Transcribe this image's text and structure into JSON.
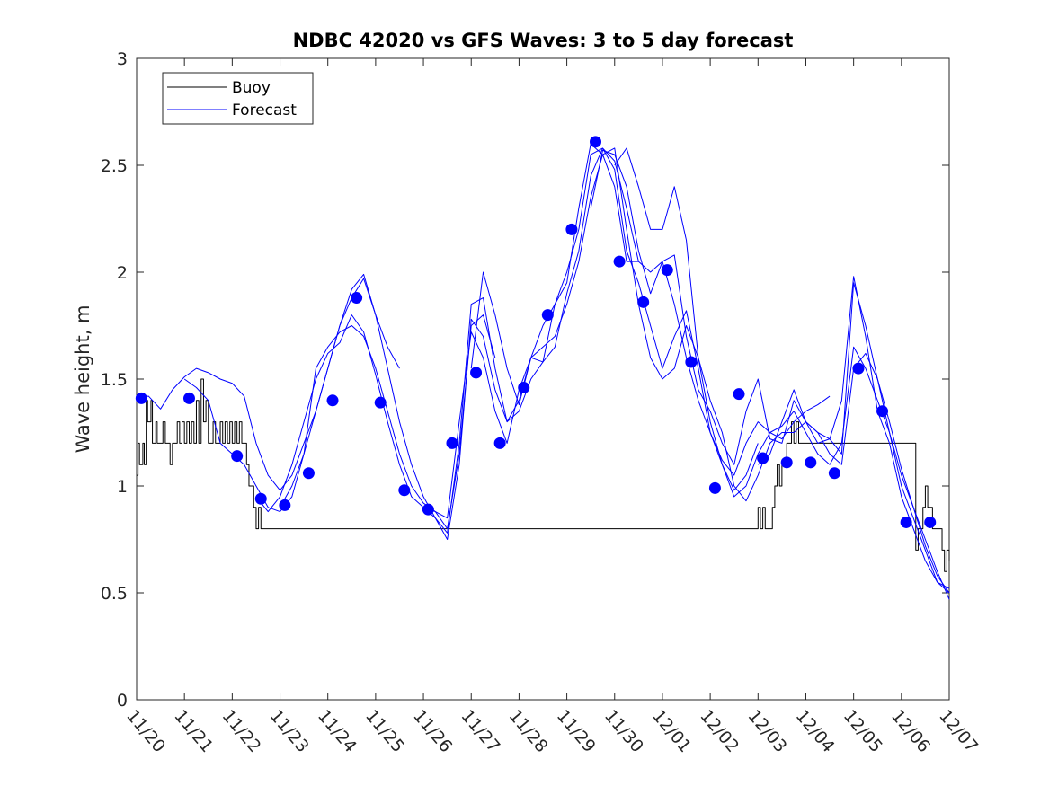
{
  "chart_data": {
    "type": "line",
    "title": "NDBC 42020 vs GFS Waves: 3 to 5 day forecast",
    "xlabel": "",
    "ylabel": "Wave height, m",
    "xlim": [
      0,
      17
    ],
    "ylim": [
      0,
      3
    ],
    "xticks": [
      0,
      1,
      2,
      3,
      4,
      5,
      6,
      7,
      8,
      9,
      10,
      11,
      12,
      13,
      14,
      15,
      16,
      17
    ],
    "xtick_labels": [
      "11/20",
      "11/21",
      "11/22",
      "11/23",
      "11/24",
      "11/25",
      "11/26",
      "11/27",
      "11/28",
      "11/29",
      "11/30",
      "12/01",
      "12/02",
      "12/03",
      "12/04",
      "12/05",
      "12/06",
      "12/07"
    ],
    "yticks": [
      0,
      0.5,
      1,
      1.5,
      2,
      2.5,
      3
    ],
    "ytick_labels": [
      "0",
      "0.5",
      "1",
      "1.5",
      "2",
      "2.5",
      "3"
    ],
    "legend": {
      "position": "top-left",
      "entries": [
        {
          "label": "Buoy",
          "color": "#000000"
        },
        {
          "label": "Forecast",
          "color": "#0000ff"
        }
      ]
    },
    "series": [
      {
        "name": "Buoy",
        "color": "#000000",
        "x": [
          0,
          0.03,
          0.06,
          0.1,
          0.13,
          0.16,
          0.2,
          0.23,
          0.27,
          0.3,
          0.33,
          0.37,
          0.4,
          0.43,
          0.47,
          0.5,
          0.55,
          0.6,
          0.65,
          0.7,
          0.75,
          0.8,
          0.85,
          0.9,
          0.95,
          1.0,
          1.05,
          1.1,
          1.15,
          1.2,
          1.25,
          1.3,
          1.35,
          1.4,
          1.45,
          1.5,
          1.55,
          1.6,
          1.65,
          1.7,
          1.75,
          1.8,
          1.85,
          1.9,
          1.95,
          2.0,
          2.05,
          2.1,
          2.15,
          2.2,
          2.25,
          2.3,
          2.35,
          2.4,
          2.45,
          2.5,
          2.55,
          2.6,
          2.65,
          2.7,
          2.75,
          2.8,
          13.0,
          13.05,
          13.1,
          13.15,
          13.2,
          13.25,
          13.3,
          13.35,
          13.4,
          13.45,
          13.5,
          13.55,
          13.6,
          13.65,
          13.7,
          13.75,
          13.8,
          13.85,
          13.9,
          13.95,
          14.0,
          14.1,
          16.3,
          16.35,
          16.4,
          16.45,
          16.5,
          16.55,
          16.6,
          16.65,
          16.7,
          16.75,
          16.8,
          16.85,
          16.9,
          16.95,
          17.0
        ],
        "values": [
          1.05,
          1.2,
          1.1,
          1.1,
          1.2,
          1.1,
          1.4,
          1.3,
          1.3,
          1.4,
          1.2,
          1.2,
          1.3,
          1.2,
          1.2,
          1.2,
          1.3,
          1.2,
          1.2,
          1.1,
          1.2,
          1.2,
          1.3,
          1.2,
          1.3,
          1.2,
          1.3,
          1.2,
          1.3,
          1.2,
          1.4,
          1.2,
          1.5,
          1.3,
          1.4,
          1.2,
          1.2,
          1.3,
          1.2,
          1.2,
          1.3,
          1.2,
          1.3,
          1.2,
          1.3,
          1.2,
          1.3,
          1.2,
          1.3,
          1.2,
          1.2,
          1.1,
          1.0,
          1.0,
          0.9,
          0.8,
          0.9,
          0.8,
          0.8,
          0.8,
          0.8,
          0.8,
          0.9,
          0.8,
          0.9,
          0.8,
          0.8,
          0.8,
          0.9,
          1.0,
          1.1,
          1.0,
          1.1,
          1.1,
          1.2,
          1.2,
          1.3,
          1.2,
          1.3,
          1.2,
          1.2,
          1.2,
          1.2,
          1.2,
          0.7,
          0.8,
          0.8,
          0.9,
          1.0,
          0.9,
          0.9,
          0.8,
          0.8,
          0.8,
          0.8,
          0.7,
          0.6,
          0.7,
          0.65
        ]
      },
      {
        "name": "Forecast run 1",
        "color": "#0000ff",
        "x": [
          0,
          0.25,
          0.5,
          0.75,
          1.0,
          1.25,
          1.5,
          1.75,
          2.0,
          2.25,
          2.5,
          2.75,
          3.0,
          3.25,
          3.5,
          3.75,
          4.0,
          4.25,
          4.5,
          4.75,
          5.0,
          5.25,
          5.5
        ],
        "values": [
          1.41,
          1.42,
          1.36,
          1.45,
          1.51,
          1.55,
          1.53,
          1.5,
          1.48,
          1.42,
          1.2,
          1.05,
          0.98,
          1.05,
          1.2,
          1.35,
          1.55,
          1.75,
          1.92,
          1.99,
          1.8,
          1.65,
          1.55
        ]
      },
      {
        "name": "Forecast run 2",
        "color": "#0000ff",
        "x": [
          1.0,
          1.25,
          1.5,
          1.75,
          2.0,
          2.25,
          2.5,
          2.75,
          3.0,
          3.25,
          3.5,
          3.75,
          4.0,
          4.25,
          4.5,
          4.75,
          5.0,
          5.25,
          5.5,
          5.75,
          6.0,
          6.25,
          6.5,
          6.75,
          7.0,
          7.25,
          7.5
        ],
        "values": [
          1.5,
          1.46,
          1.4,
          1.2,
          1.15,
          1.1,
          1.0,
          0.9,
          0.88,
          0.95,
          1.15,
          1.55,
          1.65,
          1.72,
          1.75,
          1.7,
          1.55,
          1.35,
          1.15,
          1.0,
          0.92,
          0.88,
          0.8,
          1.15,
          1.75,
          1.8,
          1.6
        ]
      },
      {
        "name": "Forecast run 3",
        "color": "#0000ff",
        "x": [
          2.5,
          2.75,
          3.0,
          3.25,
          3.5,
          3.75,
          4.0,
          4.25,
          4.5,
          4.75,
          5.0,
          5.25,
          5.5,
          5.75,
          6.0,
          6.25,
          6.5,
          6.75,
          7.0,
          7.25,
          7.5,
          7.75,
          8.0,
          8.25,
          8.5,
          8.75,
          9.0,
          9.25,
          9.5,
          9.75,
          10.0,
          10.25,
          10.5
        ],
        "values": [
          0.95,
          0.88,
          0.95,
          1.1,
          1.3,
          1.5,
          1.62,
          1.67,
          1.8,
          1.72,
          1.52,
          1.3,
          1.1,
          0.95,
          0.9,
          0.88,
          0.85,
          1.3,
          1.72,
          1.6,
          1.35,
          1.2,
          1.45,
          1.6,
          1.58,
          1.85,
          2.0,
          2.2,
          2.55,
          2.58,
          2.52,
          2.3,
          2.05
        ]
      },
      {
        "name": "Forecast run 4",
        "color": "#0000ff",
        "x": [
          3.0,
          3.25,
          3.5,
          3.75,
          4.0,
          4.25,
          4.5,
          4.75,
          5.0,
          5.25,
          5.5,
          5.75,
          6.0,
          6.25,
          6.5,
          6.75,
          7.0,
          7.25,
          7.5,
          7.75,
          8.0,
          8.25,
          8.5,
          8.75,
          9.0,
          9.25,
          9.5,
          9.75,
          10.0,
          10.25,
          10.5,
          10.75,
          11.0,
          11.25,
          11.5,
          11.75,
          12.0,
          12.25,
          12.5,
          12.75,
          13.0
        ],
        "values": [
          0.9,
          1.0,
          1.15,
          1.35,
          1.55,
          1.75,
          1.88,
          1.97,
          1.8,
          1.55,
          1.3,
          1.1,
          0.95,
          0.85,
          0.78,
          1.2,
          1.85,
          1.88,
          1.55,
          1.3,
          1.4,
          1.6,
          1.65,
          1.7,
          1.85,
          2.05,
          2.35,
          2.55,
          2.58,
          2.2,
          1.85,
          1.6,
          1.5,
          1.55,
          1.75,
          1.6,
          1.3,
          1.1,
          0.98,
          1.05,
          1.2
        ]
      },
      {
        "name": "Forecast run 5",
        "color": "#0000ff",
        "x": [
          6.0,
          6.25,
          6.5,
          6.75,
          7.0,
          7.25,
          7.5,
          7.75,
          8.0,
          8.25,
          8.5,
          8.75,
          9.0,
          9.25,
          9.5,
          9.75,
          10.0,
          10.25,
          10.5,
          10.75,
          11.0,
          11.25,
          11.5,
          11.75,
          12.0,
          12.25,
          12.5,
          12.75,
          13.0,
          13.25,
          13.5,
          13.75,
          14.0,
          14.25,
          14.5,
          14.75,
          15.0,
          15.25,
          15.5,
          15.75,
          16.0,
          16.25,
          16.5,
          16.75,
          17.0
        ],
        "values": [
          0.9,
          0.85,
          0.75,
          1.1,
          1.78,
          1.7,
          1.45,
          1.3,
          1.35,
          1.5,
          1.58,
          1.65,
          1.9,
          2.1,
          2.45,
          2.58,
          2.48,
          2.1,
          1.95,
          1.75,
          1.55,
          1.7,
          1.82,
          1.55,
          1.25,
          1.1,
          0.95,
          1.0,
          1.15,
          1.25,
          1.28,
          1.35,
          1.25,
          1.15,
          1.1,
          1.2,
          1.65,
          1.55,
          1.4,
          1.25,
          1.0,
          0.85,
          0.7,
          0.55,
          0.5
        ]
      },
      {
        "name": "Forecast run 6",
        "color": "#0000ff",
        "x": [
          7.0,
          7.25,
          7.5,
          7.75,
          8.0,
          8.25,
          8.5,
          8.75,
          9.0,
          9.25,
          9.5,
          9.75,
          10.0,
          10.25,
          10.5,
          10.75,
          11.0,
          11.25,
          11.5,
          11.75,
          12.0,
          12.25,
          12.5,
          12.75,
          13.0,
          13.25,
          13.5,
          13.75,
          14.0,
          14.25,
          14.5
        ],
        "values": [
          1.55,
          2.0,
          1.8,
          1.55,
          1.38,
          1.6,
          1.75,
          1.85,
          1.95,
          2.3,
          2.6,
          2.55,
          2.4,
          2.05,
          2.05,
          2.0,
          2.05,
          1.85,
          1.6,
          1.4,
          1.25,
          1.12,
          1.05,
          1.2,
          1.3,
          1.25,
          1.22,
          1.3,
          1.35,
          1.38,
          1.42
        ]
      },
      {
        "name": "Forecast run 7",
        "color": "#0000ff",
        "x": [
          9.5,
          9.75,
          10.0,
          10.25,
          10.5,
          10.75,
          11.0,
          11.25,
          11.5,
          11.75,
          12.0,
          12.25,
          12.5,
          12.75,
          13.0,
          13.25,
          13.5,
          13.75,
          14.0,
          14.25,
          14.5,
          14.75,
          15.0,
          15.25,
          15.5,
          15.75,
          16.0,
          16.25,
          16.5,
          16.75,
          17.0
        ],
        "values": [
          2.3,
          2.57,
          2.55,
          2.4,
          2.1,
          1.9,
          2.05,
          2.08,
          1.7,
          1.45,
          1.35,
          1.2,
          1.1,
          1.35,
          1.5,
          1.22,
          1.2,
          1.4,
          1.3,
          1.25,
          1.22,
          1.15,
          1.95,
          1.75,
          1.5,
          1.25,
          1.05,
          0.9,
          0.75,
          0.6,
          0.47
        ]
      },
      {
        "name": "Forecast run 8",
        "color": "#0000ff",
        "x": [
          10.0,
          10.25,
          10.5,
          10.75,
          11.0,
          11.25,
          11.5,
          11.75,
          12.0,
          12.25,
          12.5,
          12.75,
          13.0,
          13.25,
          13.5,
          13.75,
          14.0,
          14.25,
          14.5,
          14.75,
          15.0,
          15.25,
          15.5,
          15.75,
          16.0,
          16.25,
          16.5,
          16.75,
          17.0
        ],
        "values": [
          2.5,
          2.58,
          2.4,
          2.2,
          2.2,
          2.4,
          2.15,
          1.6,
          1.4,
          1.25,
          1.0,
          0.93,
          1.05,
          1.2,
          1.25,
          1.25,
          1.3,
          1.2,
          1.22,
          1.4,
          1.98,
          1.7,
          1.35,
          1.2,
          0.95,
          0.8,
          0.65,
          0.55,
          0.52
        ]
      },
      {
        "name": "Forecast run 9",
        "color": "#0000ff",
        "x": [
          13.0,
          13.25,
          13.5,
          13.75,
          14.0,
          14.25,
          14.5,
          14.75,
          15.0,
          15.25,
          15.5,
          15.75,
          16.0,
          16.25,
          16.5,
          16.75,
          17.0
        ],
        "values": [
          1.1,
          1.15,
          1.3,
          1.45,
          1.3,
          1.25,
          1.15,
          1.1,
          1.55,
          1.62,
          1.5,
          1.3,
          1.08,
          0.9,
          0.72,
          0.58,
          0.5
        ]
      }
    ],
    "markers": {
      "name": "Forecast markers",
      "color": "#0000ff",
      "x": [
        0.1,
        1.1,
        2.1,
        2.6,
        3.1,
        3.6,
        4.1,
        4.6,
        5.1,
        5.6,
        6.1,
        6.6,
        7.1,
        7.6,
        8.1,
        8.6,
        9.1,
        9.6,
        10.1,
        10.6,
        11.1,
        11.6,
        12.1,
        12.6,
        13.1,
        13.6,
        14.1,
        14.6,
        15.1,
        15.6,
        16.1,
        16.6
      ],
      "values": [
        1.41,
        1.41,
        1.14,
        0.94,
        0.91,
        1.06,
        1.4,
        1.88,
        1.39,
        0.98,
        0.89,
        1.2,
        1.53,
        1.2,
        1.46,
        1.8,
        2.2,
        2.61,
        2.05,
        1.86,
        2.01,
        1.58,
        0.99,
        1.43,
        1.13,
        1.11,
        1.11,
        1.06,
        1.55,
        1.35,
        0.83,
        0.83
      ]
    }
  }
}
